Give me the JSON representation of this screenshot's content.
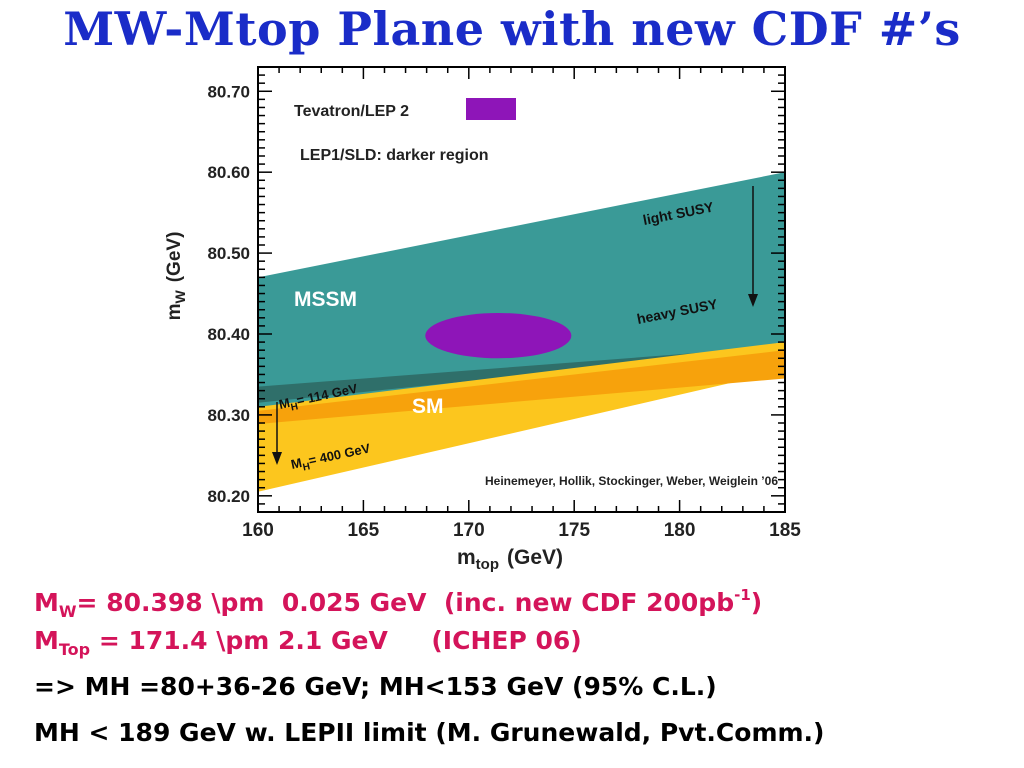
{
  "slide": {
    "title": "MW-Mtop Plane with new CDF #’s"
  },
  "chart_data": {
    "type": "area",
    "xlabel_main": "m",
    "xlabel_sub": "top",
    "xlabel_unit": "(GeV)",
    "ylabel_main": "m",
    "ylabel_sub": "W",
    "ylabel_unit": "(GeV)",
    "xlim": [
      160,
      185
    ],
    "ylim": [
      80.18,
      80.73
    ],
    "x_ticks": [
      "160",
      "165",
      "170",
      "175",
      "180",
      "185"
    ],
    "y_ticks": [
      "80.20",
      "80.30",
      "80.40",
      "80.50",
      "80.60",
      "80.70"
    ],
    "legend": {
      "entry": "Tevatron/LEP 2",
      "entry_color": "#8e15b8",
      "note": "LEP1/SLD: darker region"
    },
    "regions": [
      {
        "label": "MSSM",
        "color": "#3a9a97",
        "upper": [
          [
            160,
            80.47
          ],
          [
            185,
            80.6
          ]
        ],
        "lower": [
          [
            160,
            80.295
          ],
          [
            185,
            80.39
          ]
        ]
      },
      {
        "label": "SM",
        "color": "#fcc61e",
        "upper": [
          [
            160,
            80.31
          ],
          [
            185,
            80.39
          ]
        ],
        "lower": [
          [
            160,
            80.205
          ],
          [
            185,
            80.355
          ]
        ]
      }
    ],
    "measurement": {
      "label": "Tevatron/LEP 2",
      "mtop": 171.4,
      "mW": 80.398,
      "mtop_err": 2.1,
      "mW_err": 0.025
    },
    "annotations": [
      "light SUSY",
      "heavy SUSY",
      "M",
      "H",
      "= 114 GeV",
      "M",
      "H",
      "= 400 GeV"
    ],
    "credit": "Heinemeyer, Hollik, Stockinger, Weber, Weiglein ’06",
    "colors": {
      "mssm": "#3a9a97",
      "mssm_dark": "#2f6f6a",
      "sm": "#fcc61e",
      "sm_dark": "#f7a20c",
      "ellipse": "#8e15b8"
    }
  },
  "notes": {
    "line1": {
      "a": "M",
      "a_sub": "W",
      "b": "= 80.398 \\pm  0.025 GeV  (inc. new CDF 200pb",
      "sup": "-1",
      "c": ")"
    },
    "line2": {
      "a": "M",
      "a_sub": "Top",
      "b": " = 171.4 \\pm 2.1 GeV     (ICHEP 06)"
    },
    "line3": "=> MH =80+36-26 GeV; MH<153 GeV (95% C.L.)",
    "line4": "MH < 189 GeV w. LEPII limit (M. Grunewald, Pvt.Comm.)"
  }
}
